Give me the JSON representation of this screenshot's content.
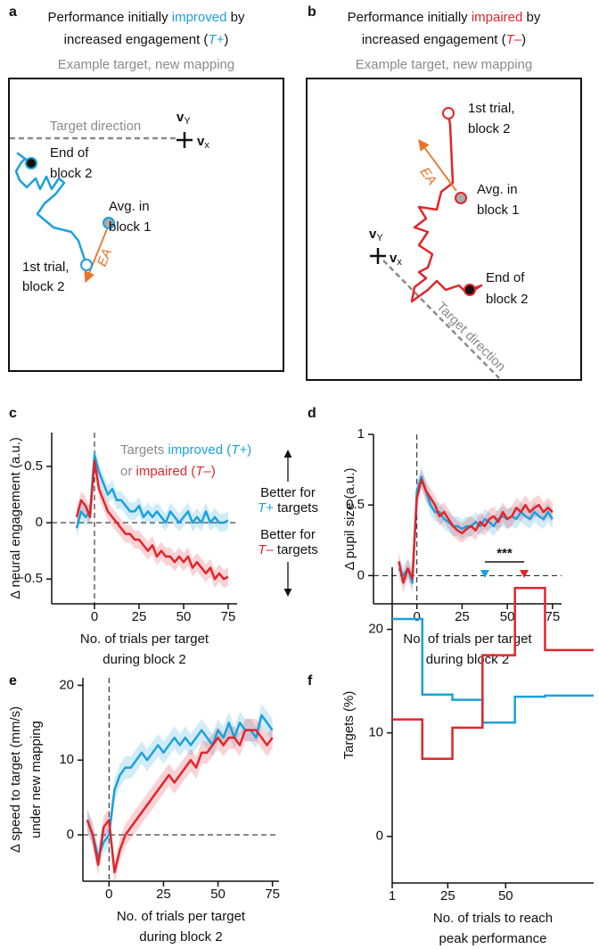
{
  "diagrams": [
    {
      "letter": "a",
      "title_lines": [
        [
          {
            "text": "Performance initially "
          },
          {
            "text": "improved",
            "color": "#1ba1dc"
          },
          {
            "text": " by"
          }
        ],
        [
          {
            "text": "increased engagement ("
          },
          {
            "text": "T+",
            "color": "#1ba1dc",
            "italic": true
          },
          {
            "text": ")"
          }
        ]
      ],
      "subtitle": "Example target, new mapping",
      "target_direction": "Target direction",
      "v_y": [
        "v",
        "Y"
      ],
      "v_x": [
        "v",
        "x"
      ],
      "end_label": [
        "End of",
        "block 2"
      ],
      "avg_label": [
        "Avg. in",
        "block 1"
      ],
      "first_label": [
        "1st trial,",
        "block 2"
      ],
      "ea": "EA"
    },
    {
      "letter": "b",
      "title_lines": [
        [
          {
            "text": "Performance initially "
          },
          {
            "text": "impaired",
            "color": "#e2252b"
          },
          {
            "text": " by"
          }
        ],
        [
          {
            "text": "increased engagement ("
          },
          {
            "text": "T–",
            "color": "#e2252b",
            "italic": true
          },
          {
            "text": ")"
          }
        ]
      ],
      "subtitle": "Example target, new mapping",
      "target_direction": "Target direction",
      "v_y": [
        "v",
        "Y"
      ],
      "v_x": [
        "v",
        "x"
      ],
      "end_label": [
        "End of",
        "block 2"
      ],
      "avg_label": [
        "Avg. in",
        "block 1"
      ],
      "first_label": [
        "1st trial,",
        "block 2"
      ],
      "ea": "EA"
    }
  ],
  "chart_data": [
    {
      "type": "line",
      "letter": "c",
      "ylabel": "Δ neural engagement (a.u.)",
      "xlabel": [
        "No. of trials per target",
        "during block 2"
      ],
      "legend_lines": [
        [
          {
            "text": "Targets "
          },
          {
            "text": "improved (",
            "color": "#1ba1dc"
          },
          {
            "text": "T+",
            "color": "#1ba1dc",
            "italic": true
          },
          {
            "text": ")",
            "color": "#1ba1dc"
          }
        ],
        [
          {
            "text": "or "
          },
          {
            "text": "impaired (",
            "color": "#e2252b"
          },
          {
            "text": "T–",
            "color": "#e2252b",
            "italic": true
          },
          {
            "text": ")",
            "color": "#e2252b"
          }
        ]
      ],
      "annotation_up": [
        [
          {
            "text": "Better for"
          }
        ],
        [
          {
            "text": "T+",
            "color": "#1ba1dc",
            "italic": true
          },
          {
            "text": " targets"
          }
        ]
      ],
      "annotation_down": [
        [
          {
            "text": "Better for"
          }
        ],
        [
          {
            "text": "T–",
            "color": "#e2252b",
            "italic": true
          },
          {
            "text": " targets"
          }
        ]
      ],
      "zero_lines": true,
      "xlim": [
        -24,
        80
      ],
      "xticks": [
        0,
        25,
        50,
        75
      ],
      "ylim": [
        -0.72,
        0.8
      ],
      "yticks": [
        {
          "value": -0.5,
          "label": "−0.5"
        },
        0,
        0.5
      ],
      "x": [
        -10,
        -7.5,
        -5,
        -2.5,
        0,
        2.5,
        5,
        7.5,
        10,
        12.5,
        15,
        17.5,
        20,
        22.5,
        25,
        27.5,
        30,
        32.5,
        35,
        37.5,
        40,
        42.5,
        45,
        47.5,
        50,
        52.5,
        55,
        57.5,
        60,
        62.5,
        65,
        67.5,
        70,
        72.5,
        75
      ],
      "series": [
        {
          "color": "#1ba1dc",
          "error": 0.08,
          "values": [
            -0.05,
            0.1,
            0.05,
            0.1,
            0.6,
            0.45,
            0.35,
            0.25,
            0.3,
            0.2,
            0.2,
            0.15,
            0.1,
            0.1,
            0.15,
            0.05,
            0.1,
            0.05,
            0.1,
            0.05,
            0.0,
            0.1,
            0.05,
            0.0,
            0.05,
            0.1,
            0.0,
            0.05,
            0.0,
            0.1,
            0.0,
            0.05,
            0.0,
            0.0,
            0.02
          ]
        },
        {
          "color": "#e2252b",
          "error": 0.08,
          "values": [
            0.05,
            0.2,
            0.15,
            0.05,
            0.55,
            0.3,
            0.2,
            0.1,
            0.05,
            0.0,
            -0.05,
            -0.1,
            -0.1,
            -0.15,
            -0.15,
            -0.2,
            -0.25,
            -0.2,
            -0.3,
            -0.25,
            -0.3,
            -0.3,
            -0.35,
            -0.3,
            -0.35,
            -0.3,
            -0.4,
            -0.35,
            -0.4,
            -0.45,
            -0.4,
            -0.5,
            -0.45,
            -0.5,
            -0.48
          ]
        }
      ]
    },
    {
      "type": "line",
      "letter": "d",
      "ylabel": "Δ pupil size (a.u.)",
      "xlabel": [
        "No. of trials per target",
        "during block 2"
      ],
      "zero_lines": true,
      "xlim": [
        -24,
        80
      ],
      "xticks": [
        0,
        25,
        50,
        75
      ],
      "ylim": [
        -0.2,
        1
      ],
      "yticks": [
        0,
        0.5,
        1
      ],
      "x": [
        -10,
        -7.5,
        -5,
        -2.5,
        0,
        2.5,
        5,
        7.5,
        10,
        12.5,
        15,
        17.5,
        20,
        22.5,
        25,
        27.5,
        30,
        32.5,
        35,
        37.5,
        40,
        42.5,
        45,
        47.5,
        50,
        52.5,
        55,
        57.5,
        60,
        62.5,
        65,
        67.5,
        70,
        72.5,
        75
      ],
      "series": [
        {
          "color": "#1ba1dc",
          "error": 0.07,
          "values": [
            0.05,
            0.0,
            0.05,
            -0.05,
            0.6,
            0.7,
            0.6,
            0.5,
            0.45,
            0.45,
            0.4,
            0.38,
            0.35,
            0.35,
            0.33,
            0.35,
            0.35,
            0.38,
            0.35,
            0.4,
            0.38,
            0.35,
            0.4,
            0.42,
            0.4,
            0.42,
            0.4,
            0.45,
            0.42,
            0.4,
            0.45,
            0.42,
            0.4,
            0.45,
            0.4
          ]
        },
        {
          "color": "#e2252b",
          "error": 0.07,
          "values": [
            0.1,
            -0.05,
            0.05,
            -0.02,
            0.55,
            0.68,
            0.6,
            0.55,
            0.5,
            0.42,
            0.45,
            0.4,
            0.35,
            0.32,
            0.3,
            0.33,
            0.35,
            0.32,
            0.38,
            0.35,
            0.4,
            0.42,
            0.38,
            0.45,
            0.4,
            0.42,
            0.48,
            0.45,
            0.5,
            0.45,
            0.48,
            0.5,
            0.45,
            0.48,
            0.45
          ]
        }
      ]
    },
    {
      "type": "line",
      "letter": "e",
      "ylabel": [
        "Δ speed to target (mm/s)",
        "under new mapping"
      ],
      "xlabel": [
        "No. of trials per target",
        "during block 2"
      ],
      "zero_lines": true,
      "xlim": [
        -12,
        78
      ],
      "xticks": [
        0,
        25,
        50,
        75
      ],
      "ylim": [
        -6.2,
        21
      ],
      "yticks": [
        0,
        10,
        20
      ],
      "x": [
        -10,
        -7.5,
        -5,
        -2.5,
        0,
        2.5,
        5,
        7.5,
        10,
        12.5,
        15,
        17.5,
        20,
        22.5,
        25,
        27.5,
        30,
        32.5,
        35,
        37.5,
        40,
        42.5,
        45,
        47.5,
        50,
        52.5,
        55,
        57.5,
        60,
        62.5,
        65,
        67.5,
        70,
        72.5,
        75
      ],
      "series": [
        {
          "color": "#1ba1dc",
          "error": 1.5,
          "values": [
            2,
            0,
            -3,
            -1,
            0,
            6,
            8,
            9,
            9,
            10,
            11,
            10,
            11,
            12,
            11,
            12,
            13,
            12,
            13,
            12,
            13,
            14,
            13,
            12,
            14,
            13,
            15,
            13,
            15,
            14,
            14,
            13,
            16,
            15,
            14
          ]
        },
        {
          "color": "#e2252b",
          "error": 1.5,
          "values": [
            2,
            0,
            -4,
            1,
            2,
            -5,
            -2,
            0,
            1,
            2,
            3,
            4,
            5,
            6,
            7,
            8,
            7,
            8,
            9,
            10,
            9,
            11,
            11,
            12,
            13,
            12,
            13,
            13,
            12,
            14,
            14,
            14,
            13,
            12,
            13
          ]
        }
      ]
    },
    {
      "type": "histogram",
      "letter": "f",
      "ylabel": "Targets (%)",
      "xlabel": [
        "No. of trials to reach",
        "peak performance"
      ],
      "significance": "***",
      "xlim": [
        1,
        88
      ],
      "xticks": [
        1,
        25,
        50
      ],
      "ylim": [
        -4.5,
        26
      ],
      "yticks": [
        0,
        10,
        20
      ],
      "bins": [
        1,
        14,
        27,
        40,
        54,
        67,
        88
      ],
      "series": [
        {
          "color": "#1ba1dc",
          "median": 41,
          "values": [
            21,
            13.7,
            13.2,
            11,
            13.5,
            13.6
          ]
        },
        {
          "color": "#e2252b",
          "median": 58,
          "values": [
            11.3,
            7.5,
            10.5,
            17.5,
            24,
            18
          ]
        }
      ]
    }
  ]
}
